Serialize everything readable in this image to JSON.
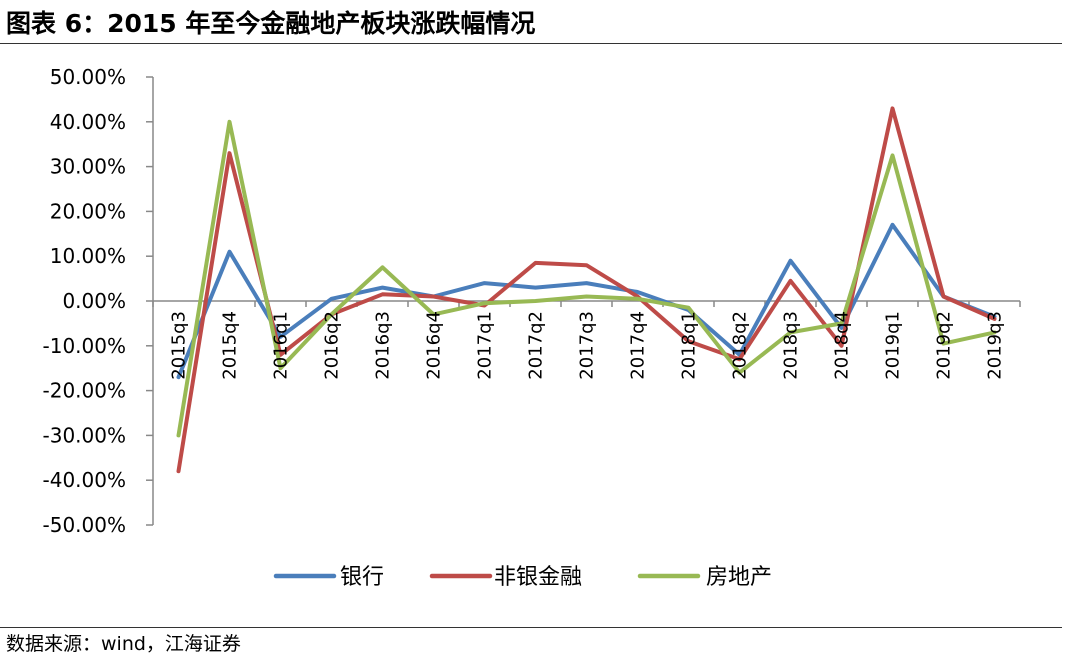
{
  "header": {
    "title": "图表 6：2015 年至今金融地产板块涨跌幅情况"
  },
  "footer": {
    "source": "数据来源：wind，江海证券"
  },
  "chart_data": {
    "type": "line",
    "title": "",
    "xlabel": "",
    "ylabel": "",
    "ylim": [
      -50,
      50
    ],
    "y_ticks": [
      50,
      40,
      30,
      20,
      10,
      0,
      -10,
      -20,
      -30,
      -40,
      -50
    ],
    "y_tick_labels": [
      "50.00%",
      "40.00%",
      "30.00%",
      "20.00%",
      "10.00%",
      "0.00%",
      "-10.00%",
      "-20.00%",
      "-30.00%",
      "-40.00%",
      "-50.00%"
    ],
    "grid": false,
    "legend_position": "bottom",
    "categories": [
      "2015q3",
      "2015q4",
      "2016q1",
      "2016q2",
      "2016q3",
      "2016q4",
      "2017q1",
      "2017q2",
      "2017q3",
      "2017q4",
      "2018q1",
      "2018q2",
      "2018q3",
      "2018q4",
      "2019q1",
      "2019q2",
      "2019q3"
    ],
    "series": [
      {
        "name": "银行",
        "color": "#4a7ebb",
        "values": [
          -17,
          11,
          -8,
          0.5,
          3,
          1,
          4,
          3,
          4,
          2,
          -2,
          -12,
          9,
          -6,
          17,
          1,
          -3.5
        ]
      },
      {
        "name": "非银金融",
        "color": "#be4b48",
        "values": [
          -38,
          33,
          -12,
          -3,
          1.5,
          1,
          -1,
          8.5,
          8,
          1,
          -9,
          -13,
          4.5,
          -10,
          43,
          1,
          -4
        ]
      },
      {
        "name": "房地产",
        "color": "#98b954",
        "values": [
          -30,
          40,
          -15,
          -3,
          7.5,
          -3,
          -0.5,
          0,
          1,
          0.5,
          -1.5,
          -16,
          -7,
          -5,
          32.5,
          -9.5,
          -7
        ]
      }
    ]
  }
}
